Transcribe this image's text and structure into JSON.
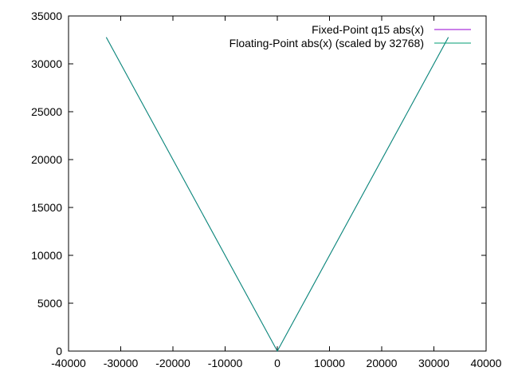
{
  "chart_data": {
    "type": "line",
    "title": "",
    "xlabel": "",
    "ylabel": "",
    "xlim": [
      -40000,
      40000
    ],
    "ylim": [
      0,
      35000
    ],
    "xticks": [
      -40000,
      -30000,
      -20000,
      -10000,
      0,
      10000,
      20000,
      30000,
      40000
    ],
    "yticks": [
      0,
      5000,
      10000,
      15000,
      20000,
      25000,
      30000,
      35000
    ],
    "grid": false,
    "legend_position": "top-right",
    "series": [
      {
        "name": "Fixed-Point q15 abs(x)",
        "color": "#9400d3",
        "x": [
          -32768,
          0,
          32767
        ],
        "y": [
          32767,
          0,
          32767
        ]
      },
      {
        "name": "Floating-Point abs(x) (scaled by 32768)",
        "color": "#009e73",
        "x": [
          -32768,
          0,
          32767
        ],
        "y": [
          32768,
          0,
          32767
        ]
      }
    ]
  }
}
